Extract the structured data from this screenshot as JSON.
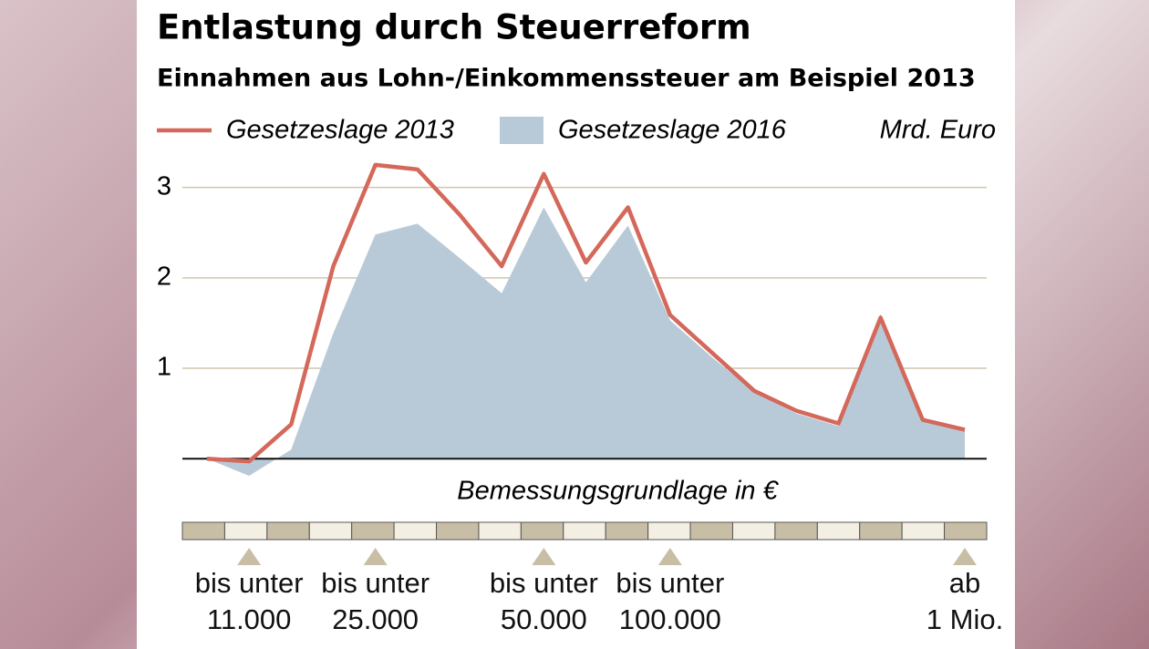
{
  "chart_data": {
    "type": "line",
    "title": "Entlastung durch Steuerreform",
    "subtitle": "Einnahmen aus Lohn-/Einkommenssteuer am Beispiel 2013",
    "unit_label": "Mrd. Euro",
    "x_label": "Bemessungsgrundlage in €",
    "categories": [
      null,
      "bis unter\n11.000",
      null,
      null,
      "bis unter\n25.000",
      null,
      null,
      null,
      "bis unter\n50.000",
      null,
      null,
      "bis unter\n100.000",
      null,
      null,
      null,
      null,
      null,
      null,
      "ab\n1 Mio."
    ],
    "series": [
      {
        "name": "Gesetzeslage 2013",
        "color": "#d4685a",
        "mark": "line",
        "values": [
          0.0,
          -0.03,
          0.38,
          2.13,
          3.25,
          3.2,
          2.7,
          2.13,
          3.15,
          2.17,
          2.78,
          1.59,
          1.17,
          0.75,
          0.53,
          0.39,
          1.56,
          0.43,
          0.32
        ]
      },
      {
        "name": "Gesetzeslage 2016",
        "color": "#b8cad8",
        "mark": "area",
        "values": [
          0.0,
          -0.19,
          0.1,
          1.39,
          2.48,
          2.6,
          2.22,
          1.83,
          2.78,
          1.95,
          2.58,
          1.53,
          1.12,
          0.74,
          0.5,
          0.36,
          1.6,
          0.42,
          0.32
        ]
      }
    ],
    "ylim": [
      -0.25,
      3.4
    ],
    "yticks": [
      1,
      2,
      3
    ],
    "grid": true
  }
}
